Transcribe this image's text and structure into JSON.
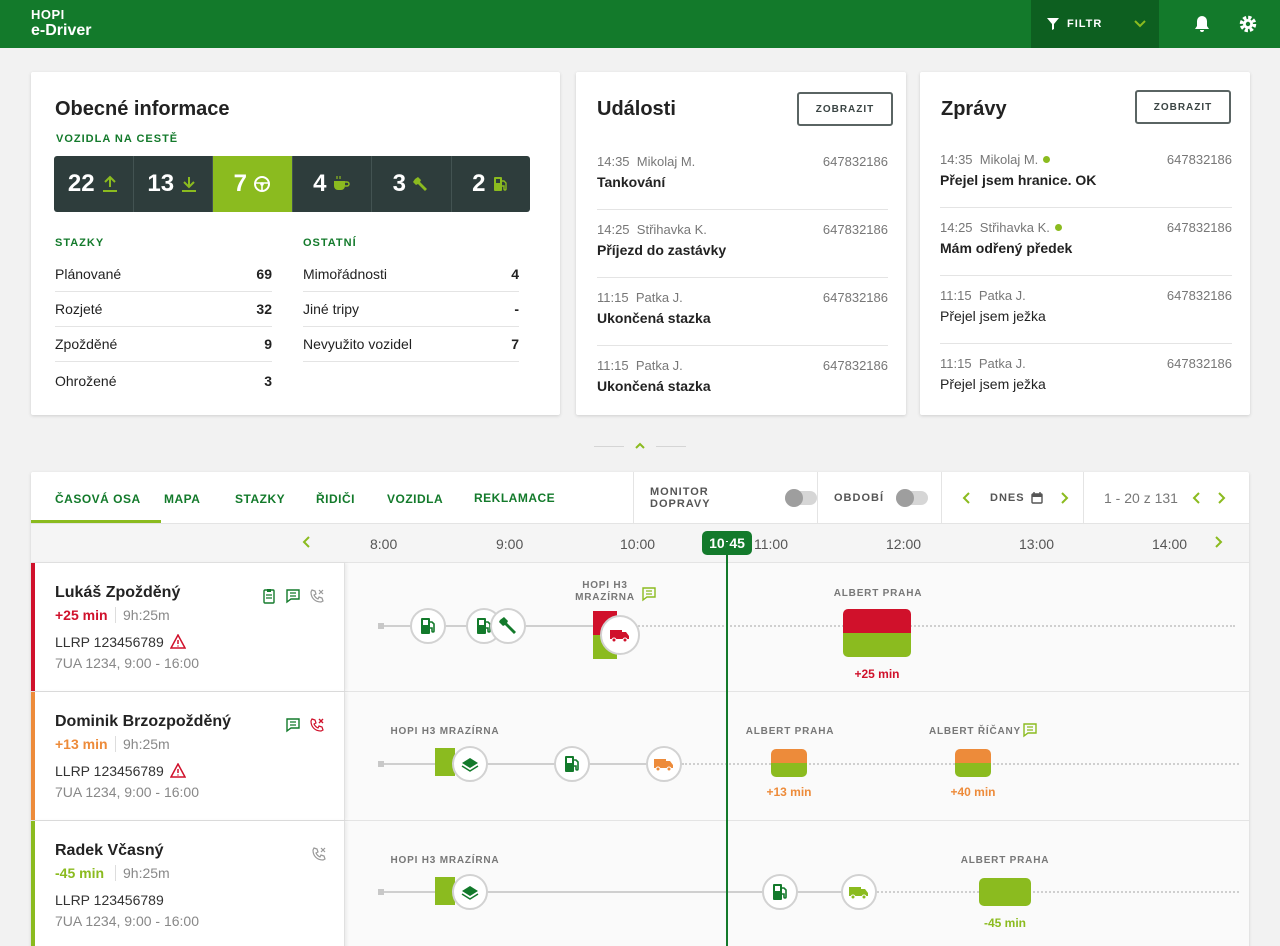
{
  "app": {
    "logo_line1": "HOPI",
    "logo_line2": "e-Driver",
    "filter_label": "FILTR"
  },
  "general": {
    "title": "Obecné informace",
    "vehicles_label": "VOZIDLA NA CESTĚ",
    "stats": [
      {
        "value": "22",
        "icon": "upload-arrow-icon"
      },
      {
        "value": "13",
        "icon": "download-arrow-icon"
      },
      {
        "value": "7",
        "icon": "steering-wheel-icon",
        "active": true
      },
      {
        "value": "4",
        "icon": "coffee-icon"
      },
      {
        "value": "3",
        "icon": "wrench-icon"
      },
      {
        "value": "2",
        "icon": "fuel-pump-icon"
      }
    ],
    "stazky_title": "STAZKY",
    "stazky": [
      {
        "label": "Plánované",
        "value": "69"
      },
      {
        "label": "Rozjeté",
        "value": "32"
      },
      {
        "label": "Zpožděné",
        "value": "9"
      },
      {
        "label": "Ohrožené",
        "value": "3"
      }
    ],
    "ostatni_title": "OSTATNÍ",
    "ostatni": [
      {
        "label": "Mimořádnosti",
        "value": "4"
      },
      {
        "label": "Jiné tripy",
        "value": "-"
      },
      {
        "label": "Nevyužito vozidel",
        "value": "7"
      }
    ]
  },
  "events": {
    "title": "Události",
    "button": "ZOBRAZIT",
    "items": [
      {
        "time": "14:35",
        "name": "Mikolaj M.",
        "number": "647832186",
        "text": "Tankování"
      },
      {
        "time": "14:25",
        "name": "Střihavka K.",
        "number": "647832186",
        "text": "Příjezd do zastávky"
      },
      {
        "time": "11:15",
        "name": "Patka J.",
        "number": "647832186",
        "text": "Ukončená stazka"
      },
      {
        "time": "11:15",
        "name": "Patka J.",
        "number": "647832186",
        "text": "Ukončená stazka"
      }
    ]
  },
  "messages": {
    "title": "Zprávy",
    "button": "ZOBRAZIT",
    "items": [
      {
        "time": "14:35",
        "name": "Mikolaj M.",
        "number": "647832186",
        "text": "Přejel jsem hranice. OK",
        "unread": true
      },
      {
        "time": "14:25",
        "name": "Střihavka K.",
        "number": "647832186",
        "text": "Mám odřený předek",
        "unread": true
      },
      {
        "time": "11:15",
        "name": "Patka J.",
        "number": "647832186",
        "text": "Přejel jsem ježka",
        "unread": false
      },
      {
        "time": "11:15",
        "name": "Patka J.",
        "number": "647832186",
        "text": "Přejel jsem ježka",
        "unread": false
      }
    ]
  },
  "timeline": {
    "tabs": [
      "ČASOVÁ OSA",
      "MAPA",
      "STAZKY",
      "ŘIDIČI",
      "VOZIDLA",
      "REKLAMACE"
    ],
    "monitor_label": "MONITOR DOPRAVY",
    "period_label": "OBDOBÍ",
    "date_label": "DNES",
    "paging": "1 - 20 z 131",
    "hours": [
      "8:00",
      "9:00",
      "10:00",
      "11:00",
      "12:00",
      "13:00",
      "14:00"
    ],
    "now": "10:45",
    "drivers": [
      {
        "name": "Lukáš Zpožděný",
        "delay": "+25 min",
        "duration": "9h:25m",
        "llrp": "LLRP 123456789",
        "vehicle": "7UA 1234, 9:00 - 16:00",
        "status_color": "#d0112b",
        "warning": true,
        "stop1_label": "HOPI H3\nMRAZÍRNA",
        "dest_label": "ALBERT PRAHA",
        "dest_delay": "+25 min"
      },
      {
        "name": "Dominik Brzozpožděný",
        "delay": "+13 min",
        "duration": "9h:25m",
        "llrp": "LLRP 123456789",
        "vehicle": "7UA 1234, 9:00 - 16:00",
        "status_color": "#ed8b3a",
        "warning": true,
        "start_label": "HOPI H3 MRAZÍRNA",
        "dest1_label": "ALBERT PRAHA",
        "dest1_delay": "+13 min",
        "dest2_label": "ALBERT ŘÍČANY",
        "dest2_delay": "+40 min"
      },
      {
        "name": "Radek Včasný",
        "delay": "-45 min",
        "duration": "9h:25m",
        "llrp": "LLRP 123456789",
        "vehicle": "7UA 1234, 9:00 - 16:00",
        "status_color": "#8bbb1f",
        "warning": false,
        "start_label": "HOPI H3 MRAZÍRNA",
        "dest_label": "ALBERT PRAHA",
        "dest_delay": "-45 min"
      }
    ]
  },
  "colors": {
    "primary": "#137a2b",
    "accent": "#8bbb1f",
    "red": "#d0112b",
    "orange": "#ed8b3a",
    "dark": "#2e3d3c"
  }
}
